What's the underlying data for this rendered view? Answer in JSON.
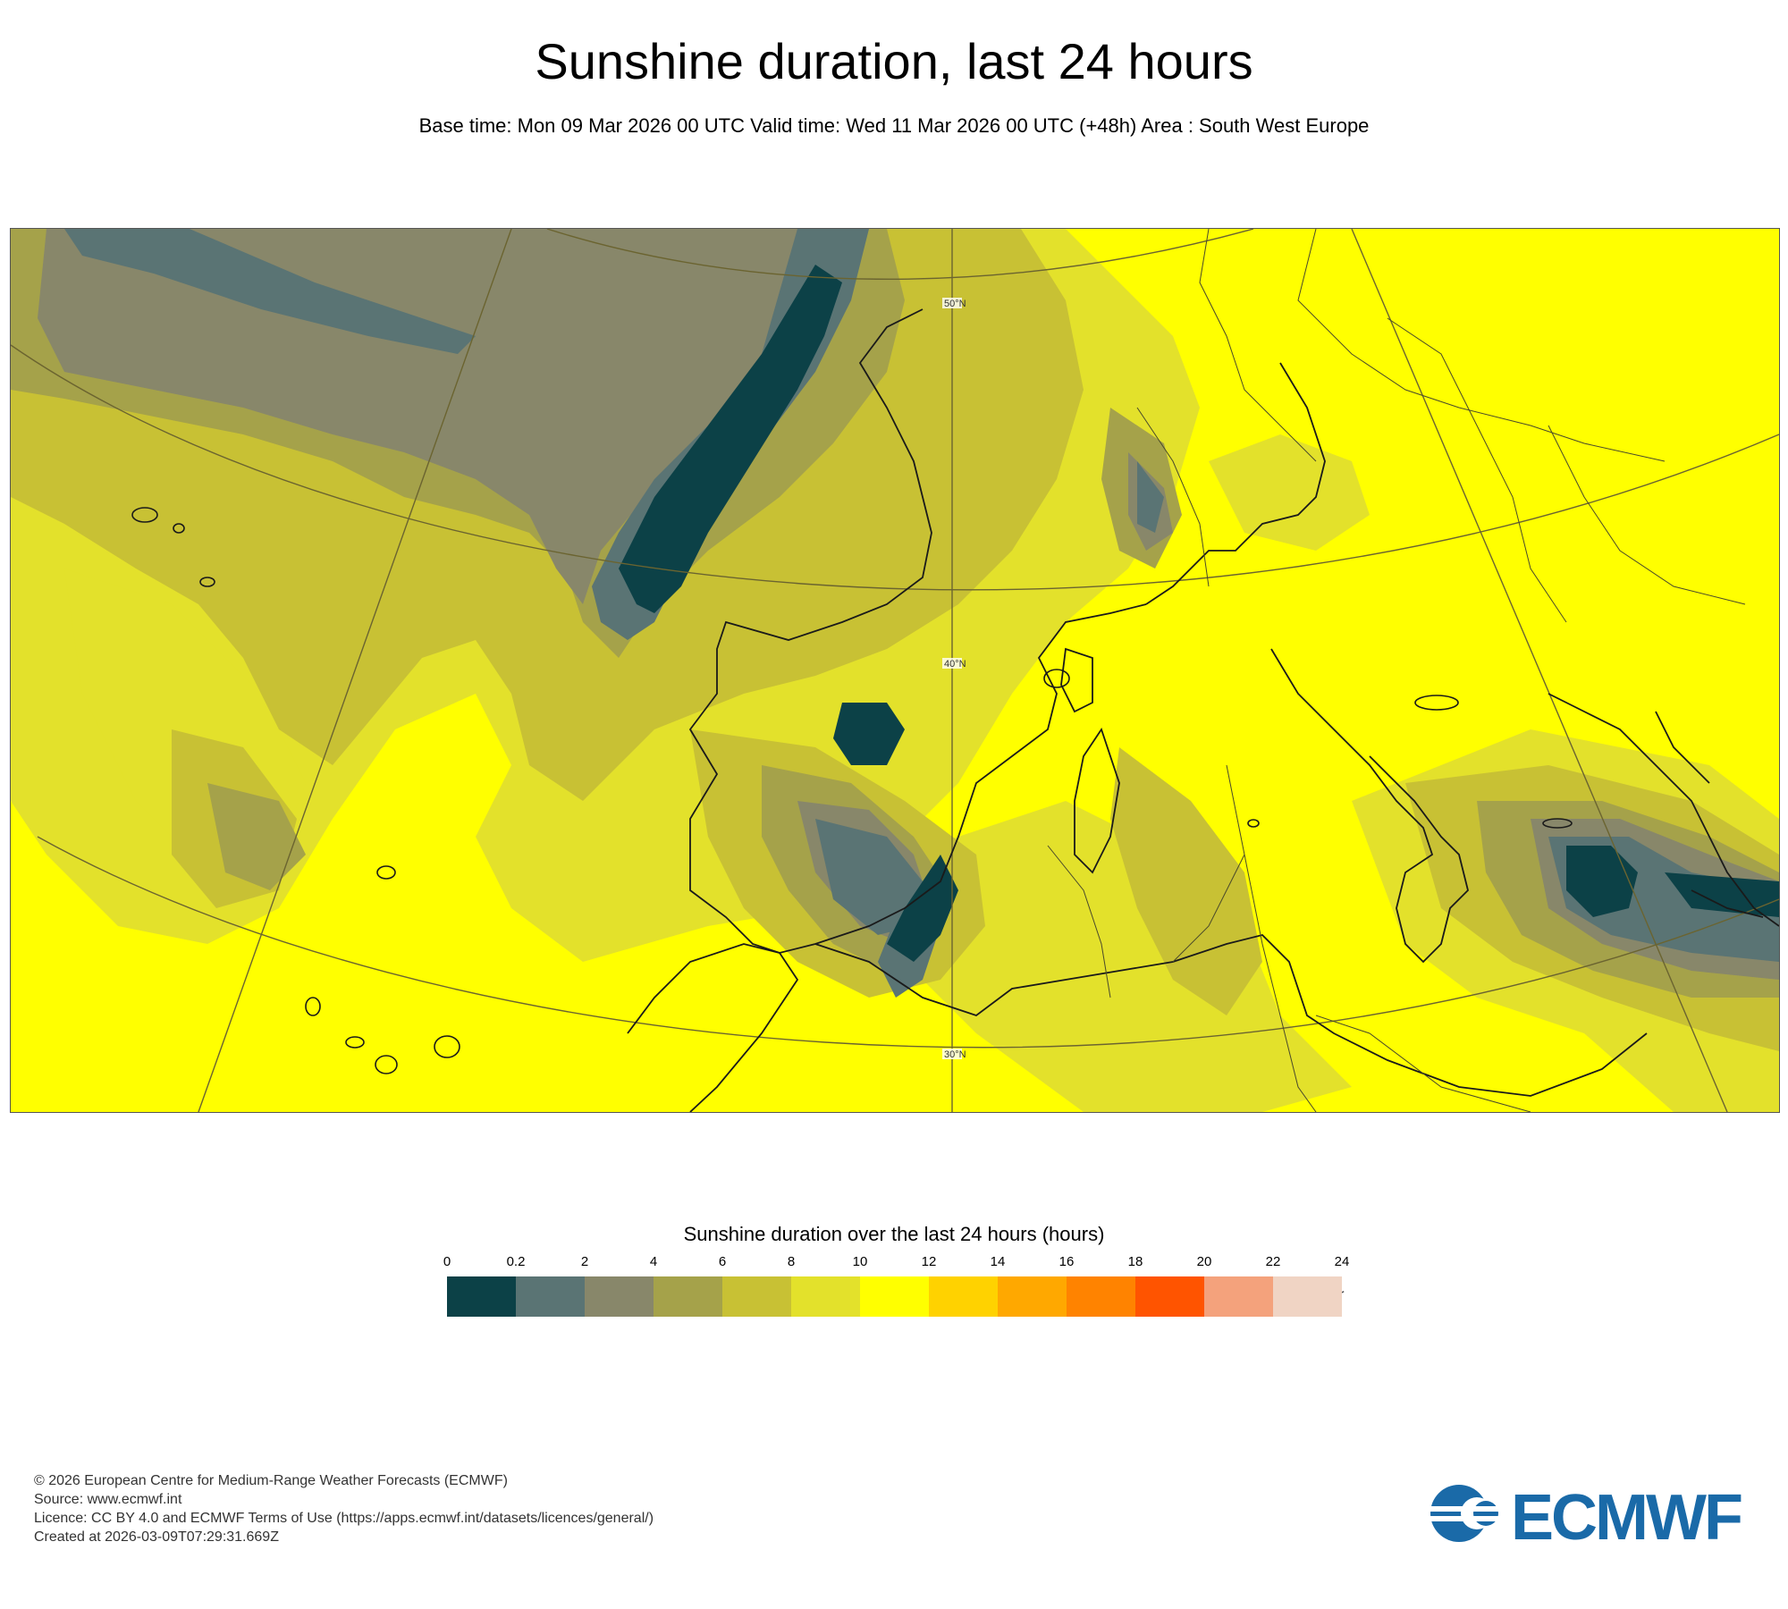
{
  "header": {
    "title": "Sunshine duration, last 24 hours",
    "subtitle": "Base time: Mon 09 Mar 2026 00 UTC Valid time: Wed 11 Mar 2026 00 UTC (+48h) Area : South West Europe"
  },
  "map": {
    "area": "South West Europe",
    "lat_labels": [
      "50°N",
      "40°N",
      "30°N"
    ]
  },
  "legend": {
    "title": "Sunshine duration over the last 24 hours (hours)",
    "unit": "-hr",
    "ticks": [
      "0",
      "0.2",
      "2",
      "4",
      "6",
      "8",
      "10",
      "12",
      "14",
      "16",
      "18",
      "20",
      "22",
      "24"
    ],
    "colors": [
      "#0c4147",
      "#5a7474",
      "#88876a",
      "#a5a24a",
      "#c8c134",
      "#e3e12b",
      "#ffff00",
      "#ffd200",
      "#ffa800",
      "#ff8300",
      "#ff5400",
      "#f4a27c",
      "#f0d4c4"
    ]
  },
  "footer": {
    "lines": [
      "© 2026 European Centre for Medium-Range Weather Forecasts (ECMWF)",
      "Source: www.ecmwf.int",
      "Licence: CC BY 4.0 and ECMWF Terms of Use (https://apps.ecmwf.int/datasets/licences/general/)",
      "Created at 2026-03-09T07:29:31.669Z"
    ],
    "logo_text": "ECMWF",
    "logo_color": "#1a6aa8"
  }
}
